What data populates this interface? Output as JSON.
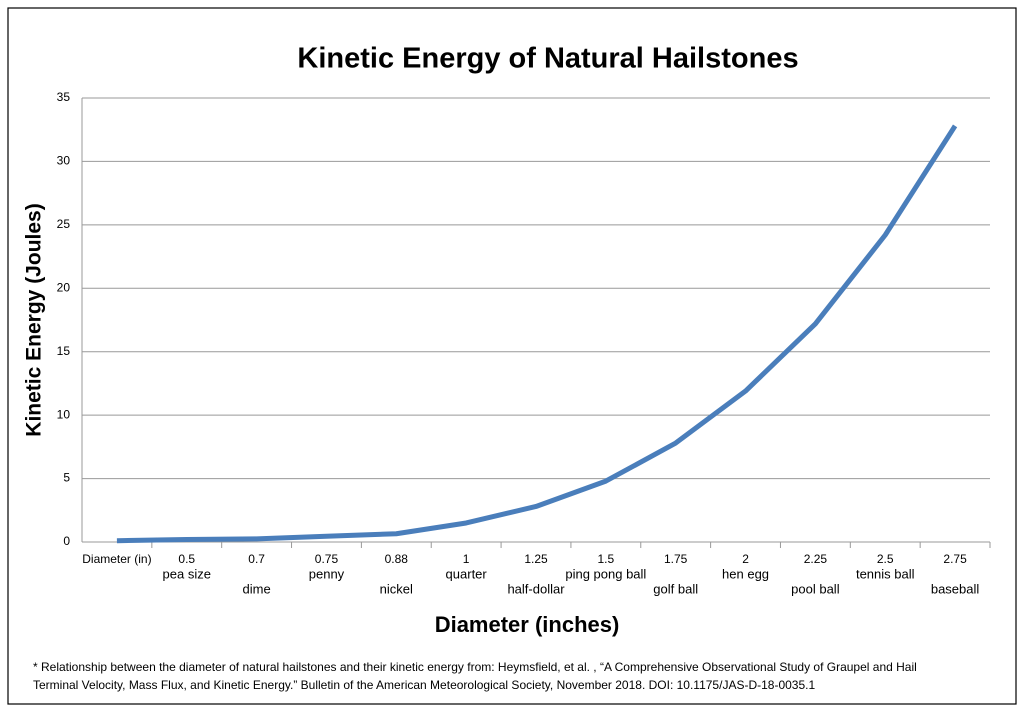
{
  "chart_data": {
    "type": "line",
    "title": "Kinetic Energy of Natural Hailstones",
    "y_label": "Kinetic Energy (Joules)",
    "x_label": "Diameter (inches)",
    "categories": [
      "Diameter (in)",
      "0.5",
      "0.7",
      "0.75",
      "0.88",
      "1",
      "1.25",
      "1.5",
      "1.75",
      "2",
      "2.25",
      "2.5",
      "2.75"
    ],
    "category_names": [
      null,
      "pea size",
      "dime",
      "penny",
      "nickel",
      "quarter",
      "half-dollar",
      "ping pong ball",
      "golf ball",
      "hen egg",
      "pool ball",
      "tennis ball",
      "baseball"
    ],
    "series": [
      {
        "name": "Kinetic Energy",
        "color": "#4a7ebb",
        "values": [
          0.1,
          0.2,
          0.25,
          0.45,
          0.65,
          1.5,
          2.8,
          4.8,
          7.8,
          11.9,
          17.2,
          24.2,
          32.8
        ]
      }
    ],
    "ylim": [
      0,
      35
    ],
    "yticks": [
      0,
      5,
      10,
      15,
      20,
      25,
      30,
      35
    ],
    "grid": true,
    "footnote": [
      "* Relationship between the diameter of natural hailstones and their kinetic energy from: Heymsfield, et al. , “A Comprehensive Observational Study of Graupel and Hail",
      "Terminal Velocity, Mass Flux, and Kinetic Energy.”  Bulletin of the American Meteorological Society, November 2018. DOI: 10.1175/JAS-D-18-0035.1"
    ]
  }
}
